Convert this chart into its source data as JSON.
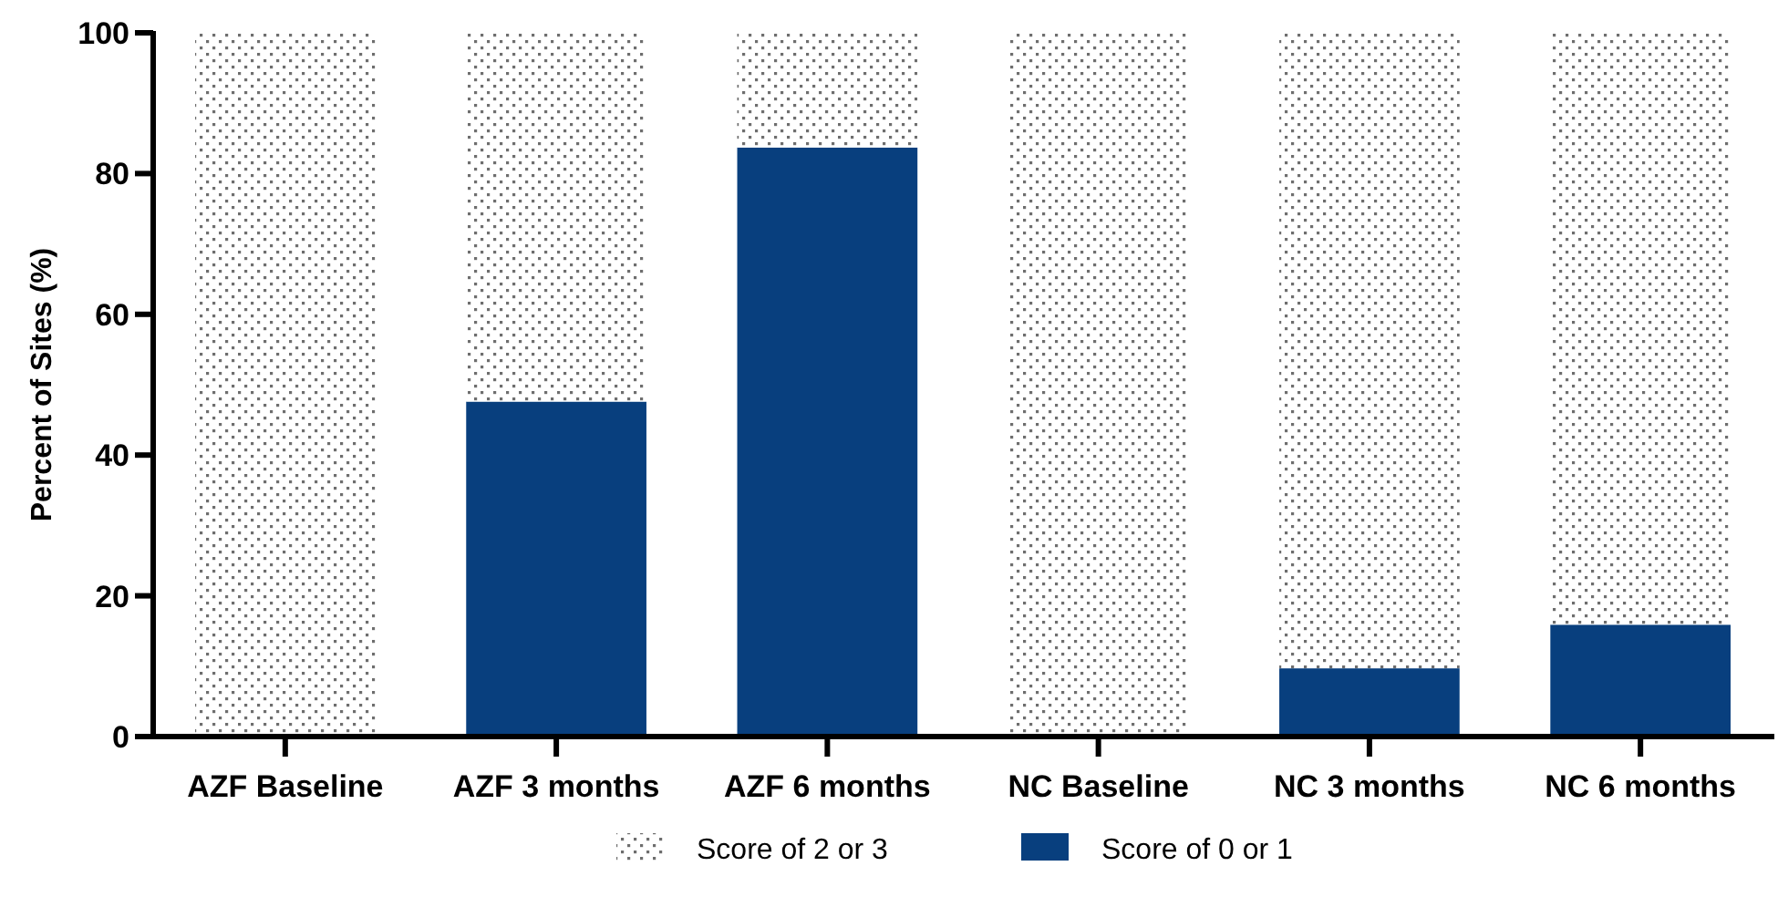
{
  "chart_data": {
    "type": "bar",
    "stacked": true,
    "ylabel": "Percent of Sites (%)",
    "categories": [
      "AZF Baseline",
      "AZF 3 months",
      "AZF 6 months",
      "NC Baseline",
      "NC 3 months",
      "NC 6 months"
    ],
    "series": [
      {
        "name": "Score of 0 or 1",
        "color": "#083f7e",
        "values": [
          0,
          47.6,
          83.7,
          0,
          9.7,
          15.9
        ]
      },
      {
        "name": "Score of 2 or 3",
        "color": "#6e6e6e",
        "values": [
          100,
          52.4,
          16.3,
          100,
          90.3,
          84.1
        ]
      }
    ],
    "ylim": [
      0,
      100
    ],
    "yticks": [
      0,
      20,
      40,
      60,
      80,
      100
    ],
    "grid": false,
    "legend": "bottom"
  }
}
